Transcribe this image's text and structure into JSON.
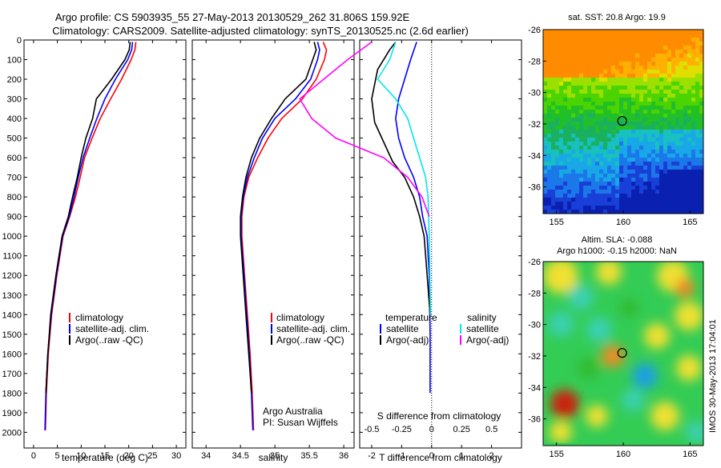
{
  "header": {
    "title_line1": "Argo profile: CS 5903935_55 27-May-2013 20130529_262 31.806S 159.92E",
    "title_line2": "Climatology: CARS2009. Satellite-adjusted climatology: synTS_20130525.nc (2.6d earlier)"
  },
  "colors": {
    "climatology": "#ff0000",
    "satellite": "#0000ff",
    "argo": "#000000",
    "sal_satellite": "#00e5ee",
    "sal_argo": "#ff00ff"
  },
  "chart_data": [
    {
      "type": "line",
      "name": "temperature",
      "xlabel": "temperature (deg C)",
      "ylabel": "",
      "xlim": [
        -2,
        32
      ],
      "ylim": [
        2080,
        0
      ],
      "xticks": [
        0,
        5,
        10,
        15,
        20,
        25,
        30
      ],
      "yticks": [
        0,
        100,
        200,
        300,
        400,
        500,
        600,
        700,
        800,
        900,
        1000,
        1100,
        1200,
        1300,
        1400,
        1500,
        1600,
        1700,
        1800,
        1900,
        2000
      ],
      "legend": [
        "climatology",
        "satellite-adj. clim.",
        "Argo(..raw -QC)"
      ],
      "series": [
        {
          "name": "climatology",
          "color": "#ff0000",
          "x": [
            21.5,
            21.3,
            20.5,
            18.5,
            16.2,
            14.0,
            12.3,
            10.7,
            9.8,
            8.8,
            7.6,
            6.2,
            4.9,
            3.8,
            3.1,
            2.7,
            2.5
          ],
          "y": [
            10,
            50,
            100,
            200,
            300,
            400,
            500,
            600,
            700,
            800,
            900,
            1000,
            1200,
            1400,
            1600,
            1800,
            1990
          ]
        },
        {
          "name": "satellite-adj. clim.",
          "color": "#0000ff",
          "x": [
            20.8,
            20.6,
            19.8,
            17.2,
            15.0,
            13.3,
            11.8,
            10.4,
            9.4,
            8.5,
            7.5,
            6.1,
            4.8,
            3.7,
            3.0,
            2.6,
            2.4
          ],
          "y": [
            10,
            50,
            100,
            200,
            300,
            400,
            500,
            600,
            700,
            800,
            900,
            1000,
            1200,
            1400,
            1600,
            1800,
            1990
          ]
        },
        {
          "name": "Argo(..raw -QC)",
          "color": "#000000",
          "x": [
            20.3,
            20.1,
            19.2,
            16.4,
            13.2,
            12.4,
            11.0,
            10.0,
            9.2,
            8.2,
            7.3,
            6.0,
            4.7,
            3.6,
            3.0,
            2.6
          ],
          "y": [
            10,
            50,
            100,
            200,
            300,
            400,
            500,
            600,
            700,
            800,
            900,
            1000,
            1200,
            1400,
            1600,
            1800
          ]
        }
      ]
    },
    {
      "type": "line",
      "name": "salinity",
      "xlabel": "salinity",
      "xlim": [
        33.8,
        36.15
      ],
      "ylim": [
        2080,
        0
      ],
      "xticks": [
        34,
        34.5,
        35,
        35.5,
        36
      ],
      "legend": [
        "climatology",
        "satellite-adj. clim.",
        "Argo(..raw -QC)"
      ],
      "annotation": [
        "Argo Australia",
        "PI: Susan Wijffels"
      ],
      "series": [
        {
          "name": "climatology",
          "color": "#ff0000",
          "x": [
            35.7,
            35.75,
            35.72,
            35.6,
            35.4,
            35.1,
            34.9,
            34.75,
            34.62,
            34.55,
            34.52,
            34.52,
            34.56,
            34.6,
            34.64,
            34.67,
            34.69
          ],
          "y": [
            10,
            50,
            100,
            200,
            300,
            400,
            500,
            600,
            700,
            800,
            900,
            1000,
            1200,
            1400,
            1600,
            1800,
            1990
          ]
        },
        {
          "name": "satellite-adj. clim.",
          "color": "#0000ff",
          "x": [
            35.62,
            35.65,
            35.62,
            35.52,
            35.3,
            35.0,
            34.82,
            34.7,
            34.6,
            34.54,
            34.51,
            34.51,
            34.55,
            34.59,
            34.63,
            34.66,
            34.68
          ],
          "y": [
            10,
            50,
            100,
            200,
            300,
            400,
            500,
            600,
            700,
            800,
            900,
            1000,
            1200,
            1400,
            1600,
            1800,
            1990
          ]
        },
        {
          "name": "Argo(..raw -QC)",
          "color": "#000000",
          "x": [
            35.57,
            35.6,
            35.55,
            35.45,
            35.15,
            34.95,
            34.78,
            34.66,
            34.58,
            34.53,
            34.5,
            34.5,
            34.54,
            34.58,
            34.62,
            34.66
          ],
          "y": [
            10,
            50,
            100,
            200,
            300,
            400,
            500,
            600,
            700,
            800,
            900,
            1000,
            1200,
            1400,
            1600,
            1800
          ]
        }
      ]
    },
    {
      "type": "line",
      "name": "differences",
      "xlabel": "T difference from climatology",
      "xlabel_top": "S difference from climatology",
      "xlim": [
        -2.4,
        3.0
      ],
      "ylim": [
        2080,
        0
      ],
      "xticks": [
        -2,
        -1,
        0,
        1,
        2
      ],
      "xticks_S": [
        -0.5,
        -0.25,
        0,
        0.25,
        0.5
      ],
      "xticks_S_labels": [
        "-0.5",
        "-0.25",
        "0",
        "0.25",
        "0.5"
      ],
      "legend_temperature_title": "temperature",
      "legend_salinity_title": "salinity",
      "legend": [
        "satellite",
        "Argo(-adj)",
        "satellite",
        "Argo(-adj)"
      ],
      "series": [
        {
          "name": "temperature satellite",
          "color": "#0000ff",
          "x": [
            -0.5,
            -0.7,
            -0.9,
            -1.1,
            -1.2,
            -1.1,
            -0.9,
            -0.6,
            -0.4,
            -0.3,
            -0.15,
            -0.08,
            -0.05,
            -0.05
          ],
          "y": [
            10,
            100,
            200,
            300,
            400,
            500,
            600,
            700,
            800,
            900,
            1000,
            1200,
            1500,
            1800
          ]
        },
        {
          "name": "temperature Argo(-adj)",
          "color": "#000000",
          "x": [
            -1.2,
            -1.4,
            -1.8,
            -2.0,
            -1.9,
            -1.6,
            -1.3,
            -0.9,
            -0.6,
            -0.4,
            -0.25,
            -0.15,
            -0.05
          ],
          "y": [
            10,
            50,
            150,
            300,
            420,
            520,
            620,
            700,
            800,
            900,
            1000,
            1200,
            1400
          ]
        },
        {
          "name": "salinity satellite",
          "color": "#00e5ee",
          "x": [
            -0.3,
            -0.35,
            -0.45,
            -0.3,
            -0.2,
            -0.15,
            -0.1,
            -0.05,
            -0.03,
            -0.02,
            -0.01
          ],
          "y": [
            10,
            100,
            200,
            300,
            400,
            500,
            600,
            700,
            800,
            1000,
            1400
          ]
        },
        {
          "name": "salinity Argo(-adj)",
          "color": "#ff00ff",
          "x": [
            -0.5,
            -0.7,
            -0.9,
            -1.1,
            -1.0,
            -0.8,
            -0.4,
            -0.2,
            -0.08,
            -0.02
          ],
          "y": [
            10,
            100,
            200,
            300,
            400,
            500,
            600,
            700,
            800,
            900
          ]
        }
      ]
    }
  ],
  "maps": {
    "sst": {
      "title": "sat. SST: 20.8 Argo: 19.9",
      "xticks": [
        "155",
        "160",
        "165"
      ],
      "yticks": [
        "-26",
        "-28",
        "-30",
        "-32",
        "-34",
        "-36"
      ],
      "xlim": [
        154,
        166
      ],
      "ylim": [
        -37.7,
        -26
      ]
    },
    "sla": {
      "title_line1": "Altim. SLA: -0.088",
      "title_line2": "Argo h1000: -0.15 h2000: NaN",
      "xticks": [
        "155",
        "160",
        "165"
      ],
      "yticks": [
        "-26",
        "-28",
        "-30",
        "-32",
        "-34",
        "-36"
      ],
      "xlim": [
        154,
        166
      ],
      "ylim": [
        -37.7,
        -26
      ]
    },
    "argo_position": {
      "lon": 159.92,
      "lat": -31.806
    }
  },
  "footer": {
    "stamp": "IMOS 30-May-2013 17:04:01"
  }
}
